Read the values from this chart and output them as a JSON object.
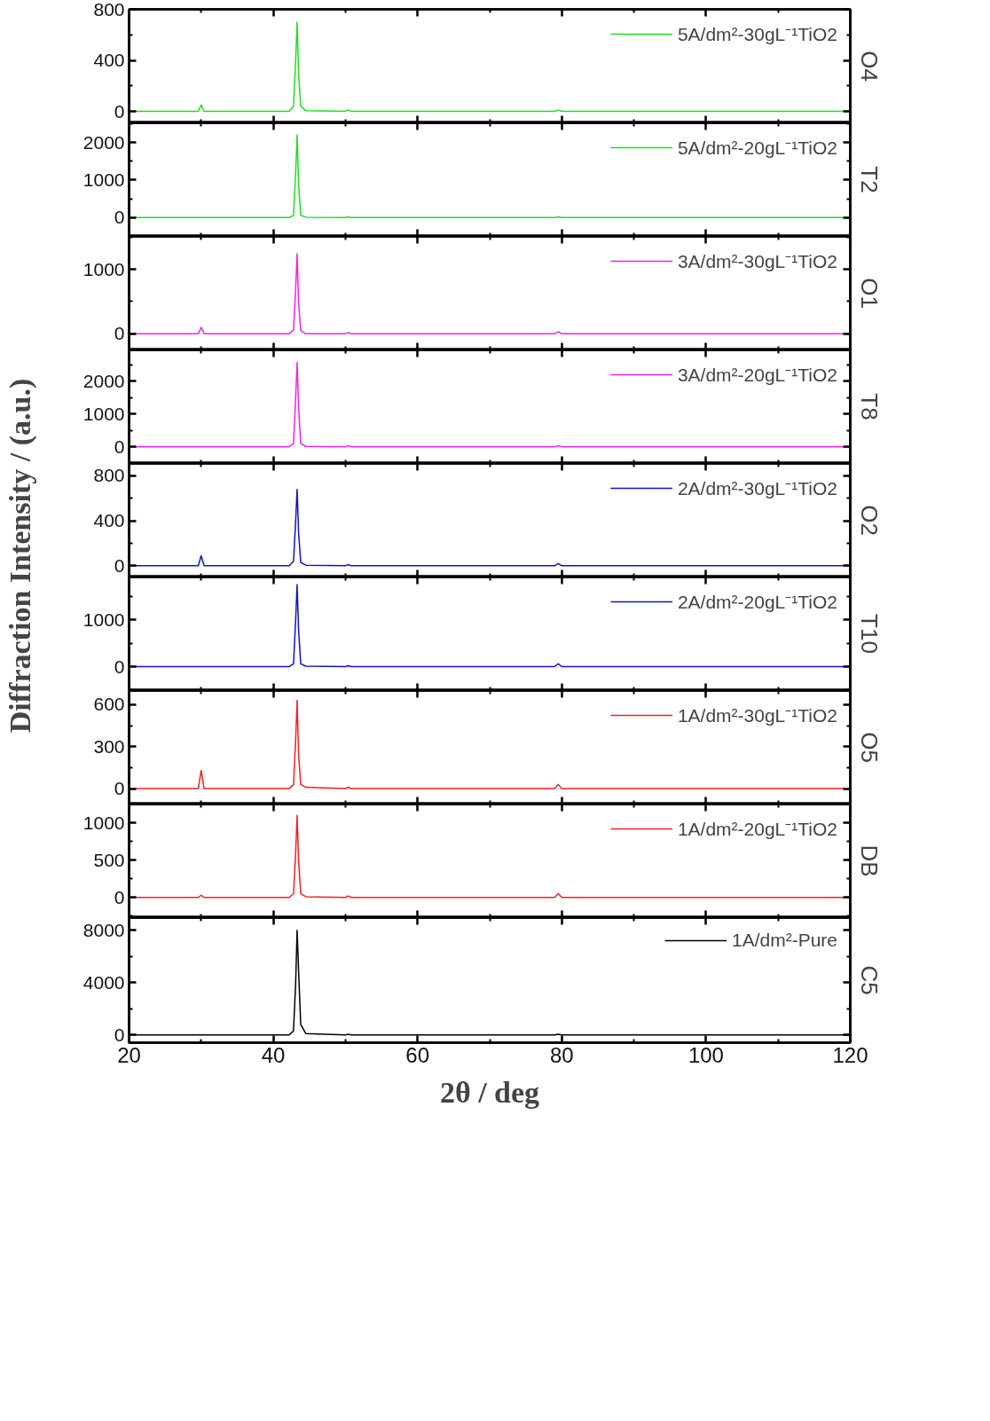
{
  "chart_data": [
    {
      "type": "line",
      "x": [
        20,
        29.6,
        30.0,
        30.4,
        42.2,
        42.8,
        43.1,
        43.3,
        43.5,
        43.8,
        44.5,
        50.0,
        50.4,
        50.8,
        79.0,
        79.5,
        80.0,
        120
      ],
      "series": [
        {
          "name": "5A/dm²-30gL⁻¹TiO2",
          "color": "#22dd22",
          "values": [
            0,
            0,
            50,
            0,
            0,
            40,
            400,
            700,
            300,
            40,
            5,
            0,
            10,
            0,
            0,
            10,
            0,
            0
          ]
        }
      ],
      "xlim": [
        20,
        120
      ],
      "xticks": [
        20,
        40,
        60,
        80,
        100,
        120
      ],
      "ylim": [
        -90,
        800
      ],
      "yticks": [
        0,
        400,
        800
      ],
      "annotations": [
        "O4"
      ],
      "legend": "top right",
      "tick_labels": "y",
      "grid": false,
      "line_style": "solid"
    },
    {
      "type": "line",
      "x": [
        20,
        29.6,
        30.0,
        30.4,
        42.2,
        42.8,
        43.1,
        43.3,
        43.5,
        43.8,
        44.5,
        50.0,
        50.4,
        50.8,
        79.0,
        79.5,
        80.0,
        120
      ],
      "series": [
        {
          "name": "5A/dm²-20gL⁻¹TiO2",
          "color": "#22dd22",
          "values": [
            0,
            0,
            0,
            0,
            0,
            60,
            1200,
            2200,
            900,
            60,
            10,
            0,
            20,
            0,
            0,
            20,
            0,
            0
          ]
        }
      ],
      "xlim": [
        20,
        120
      ],
      "xticks": [
        20,
        40,
        60,
        80,
        100,
        120
      ],
      "ylim": [
        -500,
        2520
      ],
      "yticks": [
        0,
        1000,
        2000
      ],
      "annotations": [
        "T2"
      ],
      "legend": "top right",
      "tick_labels": "y",
      "grid": false,
      "line_style": "solid"
    },
    {
      "type": "line",
      "x": [
        20,
        29.6,
        30.0,
        30.4,
        42.2,
        42.8,
        43.1,
        43.3,
        43.5,
        43.8,
        44.5,
        50.0,
        50.4,
        50.8,
        79.0,
        79.5,
        80.0,
        120
      ],
      "series": [
        {
          "name": "3A/dm²-30gL⁻¹TiO2",
          "color": "#ee22ee",
          "values": [
            0,
            0,
            100,
            0,
            0,
            60,
            700,
            1240,
            500,
            50,
            0,
            0,
            20,
            0,
            0,
            30,
            0,
            0
          ]
        }
      ],
      "xlim": [
        20,
        120
      ],
      "xticks": [
        20,
        40,
        60,
        80,
        100,
        120
      ],
      "ylim": [
        -250,
        1510
      ],
      "yticks": [
        0,
        1000
      ],
      "annotations": [
        "O1"
      ],
      "legend": "top right",
      "tick_labels": "y",
      "grid": false,
      "line_style": "solid"
    },
    {
      "type": "line",
      "x": [
        20,
        29.6,
        30.0,
        30.4,
        42.2,
        42.8,
        43.1,
        43.3,
        43.5,
        43.8,
        44.5,
        50.0,
        50.4,
        50.8,
        79.0,
        79.5,
        80.0,
        120
      ],
      "series": [
        {
          "name": "3A/dm²-20gL⁻¹TiO2",
          "color": "#ee22ee",
          "values": [
            0,
            0,
            0,
            0,
            0,
            100,
            1500,
            2570,
            1200,
            100,
            10,
            0,
            30,
            0,
            0,
            30,
            0,
            0
          ]
        }
      ],
      "xlim": [
        20,
        120
      ],
      "xticks": [
        20,
        40,
        60,
        80,
        100,
        120
      ],
      "ylim": [
        -510,
        2950
      ],
      "yticks": [
        0,
        1000,
        2000
      ],
      "annotations": [
        "T8"
      ],
      "legend": "top right",
      "tick_labels": "y",
      "grid": false,
      "line_style": "solid"
    },
    {
      "type": "line",
      "x": [
        20,
        29.6,
        30.0,
        30.4,
        42.2,
        42.8,
        43.1,
        43.3,
        43.5,
        43.8,
        44.5,
        50.0,
        50.4,
        50.8,
        79.0,
        79.5,
        80.0,
        120
      ],
      "series": [
        {
          "name": "2A/dm²-30gL⁻¹TiO2",
          "color": "#1111cc",
          "values": [
            0,
            0,
            90,
            0,
            0,
            40,
            400,
            680,
            300,
            30,
            5,
            0,
            10,
            0,
            0,
            20,
            0,
            0
          ]
        }
      ],
      "xlim": [
        20,
        120
      ],
      "xticks": [
        20,
        40,
        60,
        80,
        100,
        120
      ],
      "ylim": [
        -100,
        910
      ],
      "yticks": [
        0,
        400,
        800
      ],
      "ylabel": "Diffraction Intensity / (a.u.)",
      "annotations": [
        "O2"
      ],
      "legend": "top right",
      "tick_labels": "y",
      "grid": false,
      "line_style": "solid"
    },
    {
      "type": "line",
      "x": [
        20,
        29.6,
        30.0,
        30.4,
        42.2,
        42.8,
        43.1,
        43.3,
        43.5,
        43.8,
        44.5,
        50.0,
        50.4,
        50.8,
        79.0,
        79.5,
        80.0,
        120
      ],
      "series": [
        {
          "name": "2A/dm²-20gL⁻¹TiO2",
          "color": "#1111cc",
          "values": [
            0,
            0,
            0,
            0,
            0,
            60,
            1000,
            1750,
            800,
            60,
            10,
            0,
            20,
            0,
            0,
            60,
            0,
            0
          ]
        }
      ],
      "xlim": [
        20,
        120
      ],
      "xticks": [
        20,
        40,
        60,
        80,
        100,
        120
      ],
      "ylim": [
        -510,
        1910
      ],
      "yticks": [
        0,
        1000
      ],
      "annotations": [
        "T10"
      ],
      "legend": "top right",
      "tick_labels": "y",
      "grid": false,
      "line_style": "solid"
    },
    {
      "type": "line",
      "x": [
        20,
        29.6,
        30.0,
        30.4,
        42.2,
        42.8,
        43.1,
        43.3,
        43.5,
        43.8,
        44.5,
        50.0,
        50.4,
        50.8,
        79.0,
        79.5,
        80.0,
        120
      ],
      "series": [
        {
          "name": "1A/dm²-30gL⁻¹TiO2",
          "color": "#ee2222",
          "values": [
            0,
            0,
            130,
            0,
            0,
            30,
            350,
            630,
            250,
            30,
            10,
            0,
            10,
            0,
            0,
            30,
            0,
            0
          ]
        }
      ],
      "xlim": [
        20,
        120
      ],
      "xticks": [
        20,
        40,
        60,
        80,
        100,
        120
      ],
      "ylim": [
        -110,
        700
      ],
      "yticks": [
        0,
        300,
        600
      ],
      "annotations": [
        "O5"
      ],
      "legend": "top right",
      "tick_labels": "y",
      "grid": false,
      "line_style": "solid"
    },
    {
      "type": "line",
      "x": [
        20,
        29.6,
        30.0,
        30.4,
        42.2,
        42.8,
        43.1,
        43.3,
        43.5,
        43.8,
        44.5,
        50.0,
        50.4,
        50.8,
        79.0,
        79.5,
        80.0,
        120
      ],
      "series": [
        {
          "name": "1A/dm²-20gL⁻¹TiO2",
          "color": "#ee2222",
          "values": [
            0,
            0,
            30,
            0,
            0,
            50,
            600,
            1100,
            500,
            50,
            10,
            0,
            20,
            0,
            0,
            50,
            0,
            0
          ]
        }
      ],
      "xlim": [
        20,
        120
      ],
      "xticks": [
        20,
        40,
        60,
        80,
        100,
        120
      ],
      "ylim": [
        -270,
        1250
      ],
      "yticks": [
        0,
        500,
        1000
      ],
      "annotations": [
        "DB"
      ],
      "legend": "top right",
      "tick_labels": "y",
      "grid": false,
      "line_style": "solid"
    },
    {
      "type": "line",
      "x": [
        20,
        29.6,
        30.0,
        30.4,
        42.2,
        42.8,
        43.1,
        43.3,
        43.5,
        43.8,
        44.5,
        50.0,
        50.4,
        50.8,
        79.0,
        79.5,
        80.0,
        120
      ],
      "series": [
        {
          "name": "1A/dm²-Pure",
          "color": "#000000",
          "values": [
            0,
            0,
            0,
            0,
            0,
            300,
            4000,
            8000,
            5000,
            800,
            100,
            0,
            50,
            0,
            0,
            50,
            0,
            0
          ]
        }
      ],
      "xlim": [
        20,
        120
      ],
      "xticks": [
        20,
        40,
        60,
        80,
        100,
        120
      ],
      "ylim": [
        -600,
        8970
      ],
      "yticks": [
        0,
        4000,
        8000
      ],
      "xlabel": "2θ / deg",
      "annotations": [
        "C5"
      ],
      "legend": "top right",
      "grid": false,
      "line_style": "solid"
    }
  ]
}
